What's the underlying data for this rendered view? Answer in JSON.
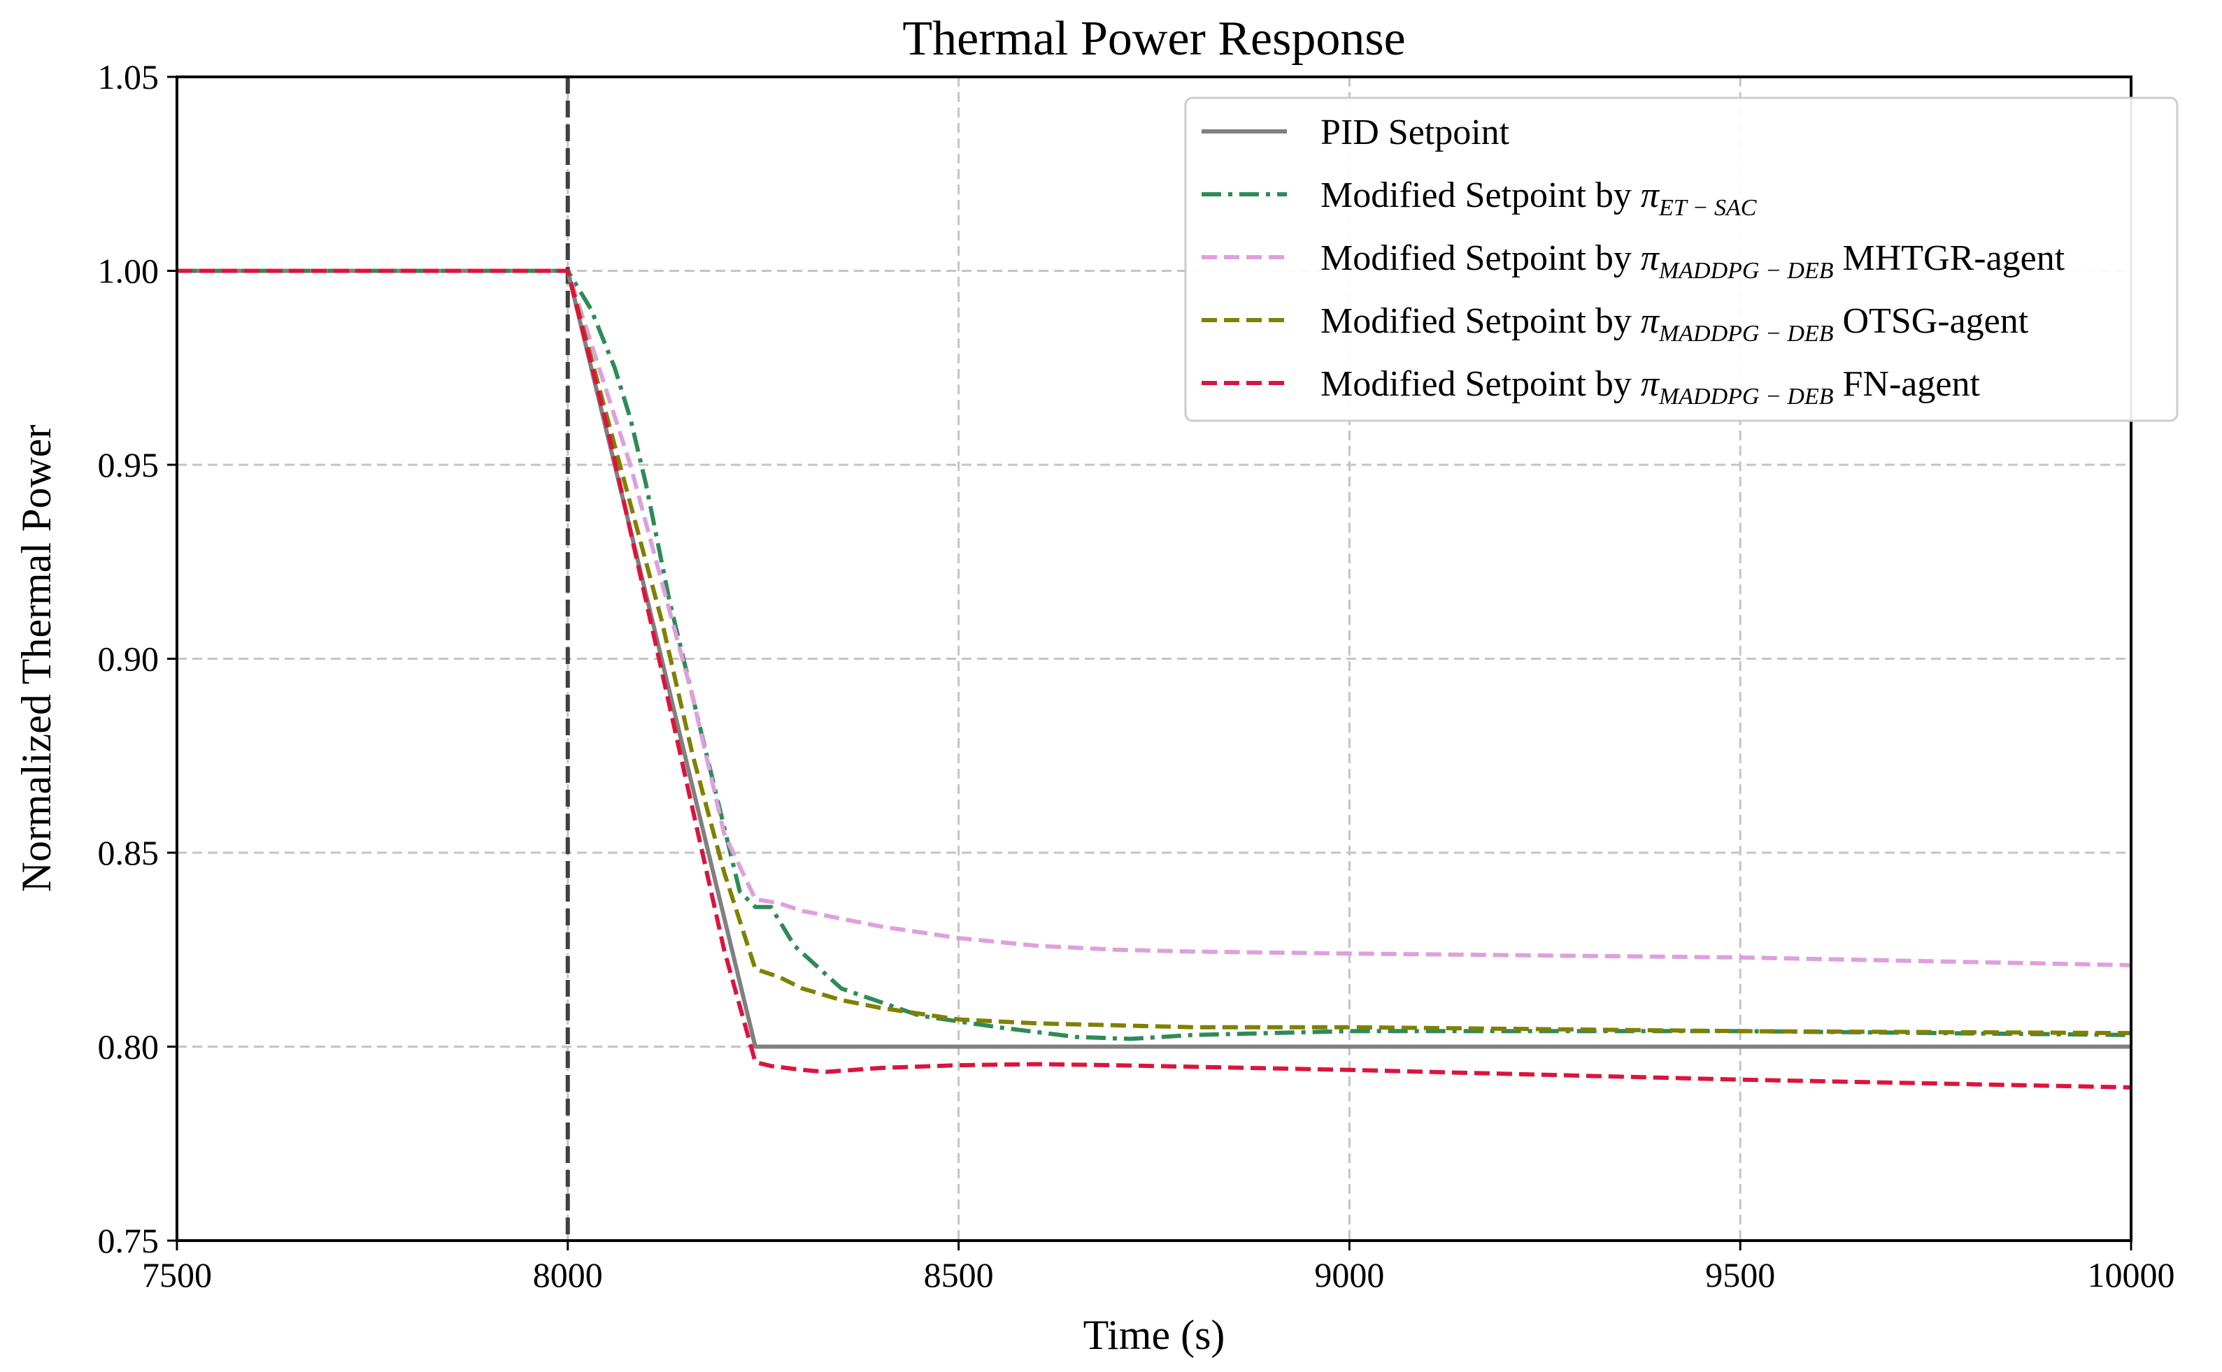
{
  "chart_data": {
    "type": "line",
    "title": "Thermal Power Response",
    "xlabel": "Time (s)",
    "ylabel": "Normalized Thermal Power",
    "xlim": [
      7500,
      10000
    ],
    "ylim": [
      0.75,
      1.05
    ],
    "xticks": [
      "7500",
      "8000",
      "8500",
      "9000",
      "9500",
      "10000"
    ],
    "xtick_values": [
      7500,
      8000,
      8500,
      9000,
      9500,
      10000
    ],
    "yticks": [
      "0.75",
      "0.80",
      "0.85",
      "0.90",
      "0.95",
      "1.00",
      "1.05"
    ],
    "ytick_values": [
      0.75,
      0.8,
      0.85,
      0.9,
      0.95,
      1.0,
      1.05
    ],
    "grid": true,
    "legend_position": "top-right",
    "vline": {
      "x": 8000,
      "color": "#404040",
      "style": "dashed"
    },
    "series": [
      {
        "name": "PID Setpoint",
        "legend_prefix": "PID Setpoint",
        "color": "#808080",
        "style": "solid",
        "x": [
          7500,
          8000,
          8240,
          10000
        ],
        "y": [
          1.0,
          1.0,
          0.8,
          0.8
        ]
      },
      {
        "name": "Modified Setpoint by π_ET−SAC",
        "legend_prefix": "Modified Setpoint by ",
        "legend_pi": "π",
        "legend_sub": "ET − SAC",
        "legend_suffix": "",
        "color": "#2e8b57",
        "style": "dashdot",
        "x": [
          7500,
          8000,
          8030,
          8060,
          8080,
          8100,
          8130,
          8160,
          8190,
          8220,
          8240,
          8260,
          8290,
          8350,
          8450,
          8550,
          8650,
          8720,
          8800,
          9000,
          9500,
          10000
        ],
        "y": [
          1.0,
          1.0,
          0.99,
          0.975,
          0.962,
          0.945,
          0.915,
          0.89,
          0.865,
          0.84,
          0.836,
          0.836,
          0.826,
          0.815,
          0.808,
          0.805,
          0.8025,
          0.802,
          0.803,
          0.804,
          0.804,
          0.803
        ]
      },
      {
        "name": "Modified Setpoint by π_MADDPG−DEB MHTGR-agent",
        "legend_prefix": "Modified Setpoint by ",
        "legend_pi": "π",
        "legend_sub": "MADDPG − DEB",
        "legend_suffix": " MHTGR-agent",
        "color": "#dda0dd",
        "style": "dashed",
        "x": [
          7500,
          8000,
          8040,
          8080,
          8120,
          8160,
          8200,
          8240,
          8270,
          8300,
          8400,
          8500,
          8600,
          8700,
          8800,
          9000,
          9500,
          10000
        ],
        "y": [
          1.0,
          1.0,
          0.975,
          0.95,
          0.92,
          0.89,
          0.855,
          0.838,
          0.837,
          0.835,
          0.831,
          0.828,
          0.826,
          0.825,
          0.8245,
          0.824,
          0.823,
          0.821
        ]
      },
      {
        "name": "Modified Setpoint by π_MADDPG−DEB OTSG-agent",
        "legend_prefix": "Modified Setpoint by ",
        "legend_pi": "π",
        "legend_sub": "MADDPG − DEB",
        "legend_suffix": " OTSG-agent",
        "color": "#808000",
        "style": "dashed",
        "x": [
          7500,
          8000,
          8040,
          8080,
          8120,
          8160,
          8200,
          8240,
          8270,
          8300,
          8350,
          8400,
          8500,
          8600,
          8800,
          9000,
          9500,
          10000
        ],
        "y": [
          1.0,
          1.0,
          0.97,
          0.94,
          0.91,
          0.875,
          0.845,
          0.82,
          0.818,
          0.815,
          0.812,
          0.81,
          0.807,
          0.806,
          0.805,
          0.805,
          0.804,
          0.8035
        ]
      },
      {
        "name": "Modified Setpoint by π_MADDPG−DEB FN-agent",
        "legend_prefix": "Modified Setpoint by ",
        "legend_pi": "π",
        "legend_sub": "MADDPG − DEB",
        "legend_suffix": " FN-agent",
        "color": "#dc143c",
        "style": "dashed",
        "x": [
          7500,
          8000,
          8050,
          8100,
          8150,
          8200,
          8240,
          8260,
          8300,
          8330,
          8400,
          8500,
          8600,
          8700,
          9000,
          9500,
          10000
        ],
        "y": [
          1.0,
          1.0,
          0.96,
          0.915,
          0.87,
          0.825,
          0.796,
          0.795,
          0.794,
          0.7935,
          0.7945,
          0.7952,
          0.7955,
          0.7952,
          0.794,
          0.7915,
          0.7895
        ]
      }
    ]
  }
}
